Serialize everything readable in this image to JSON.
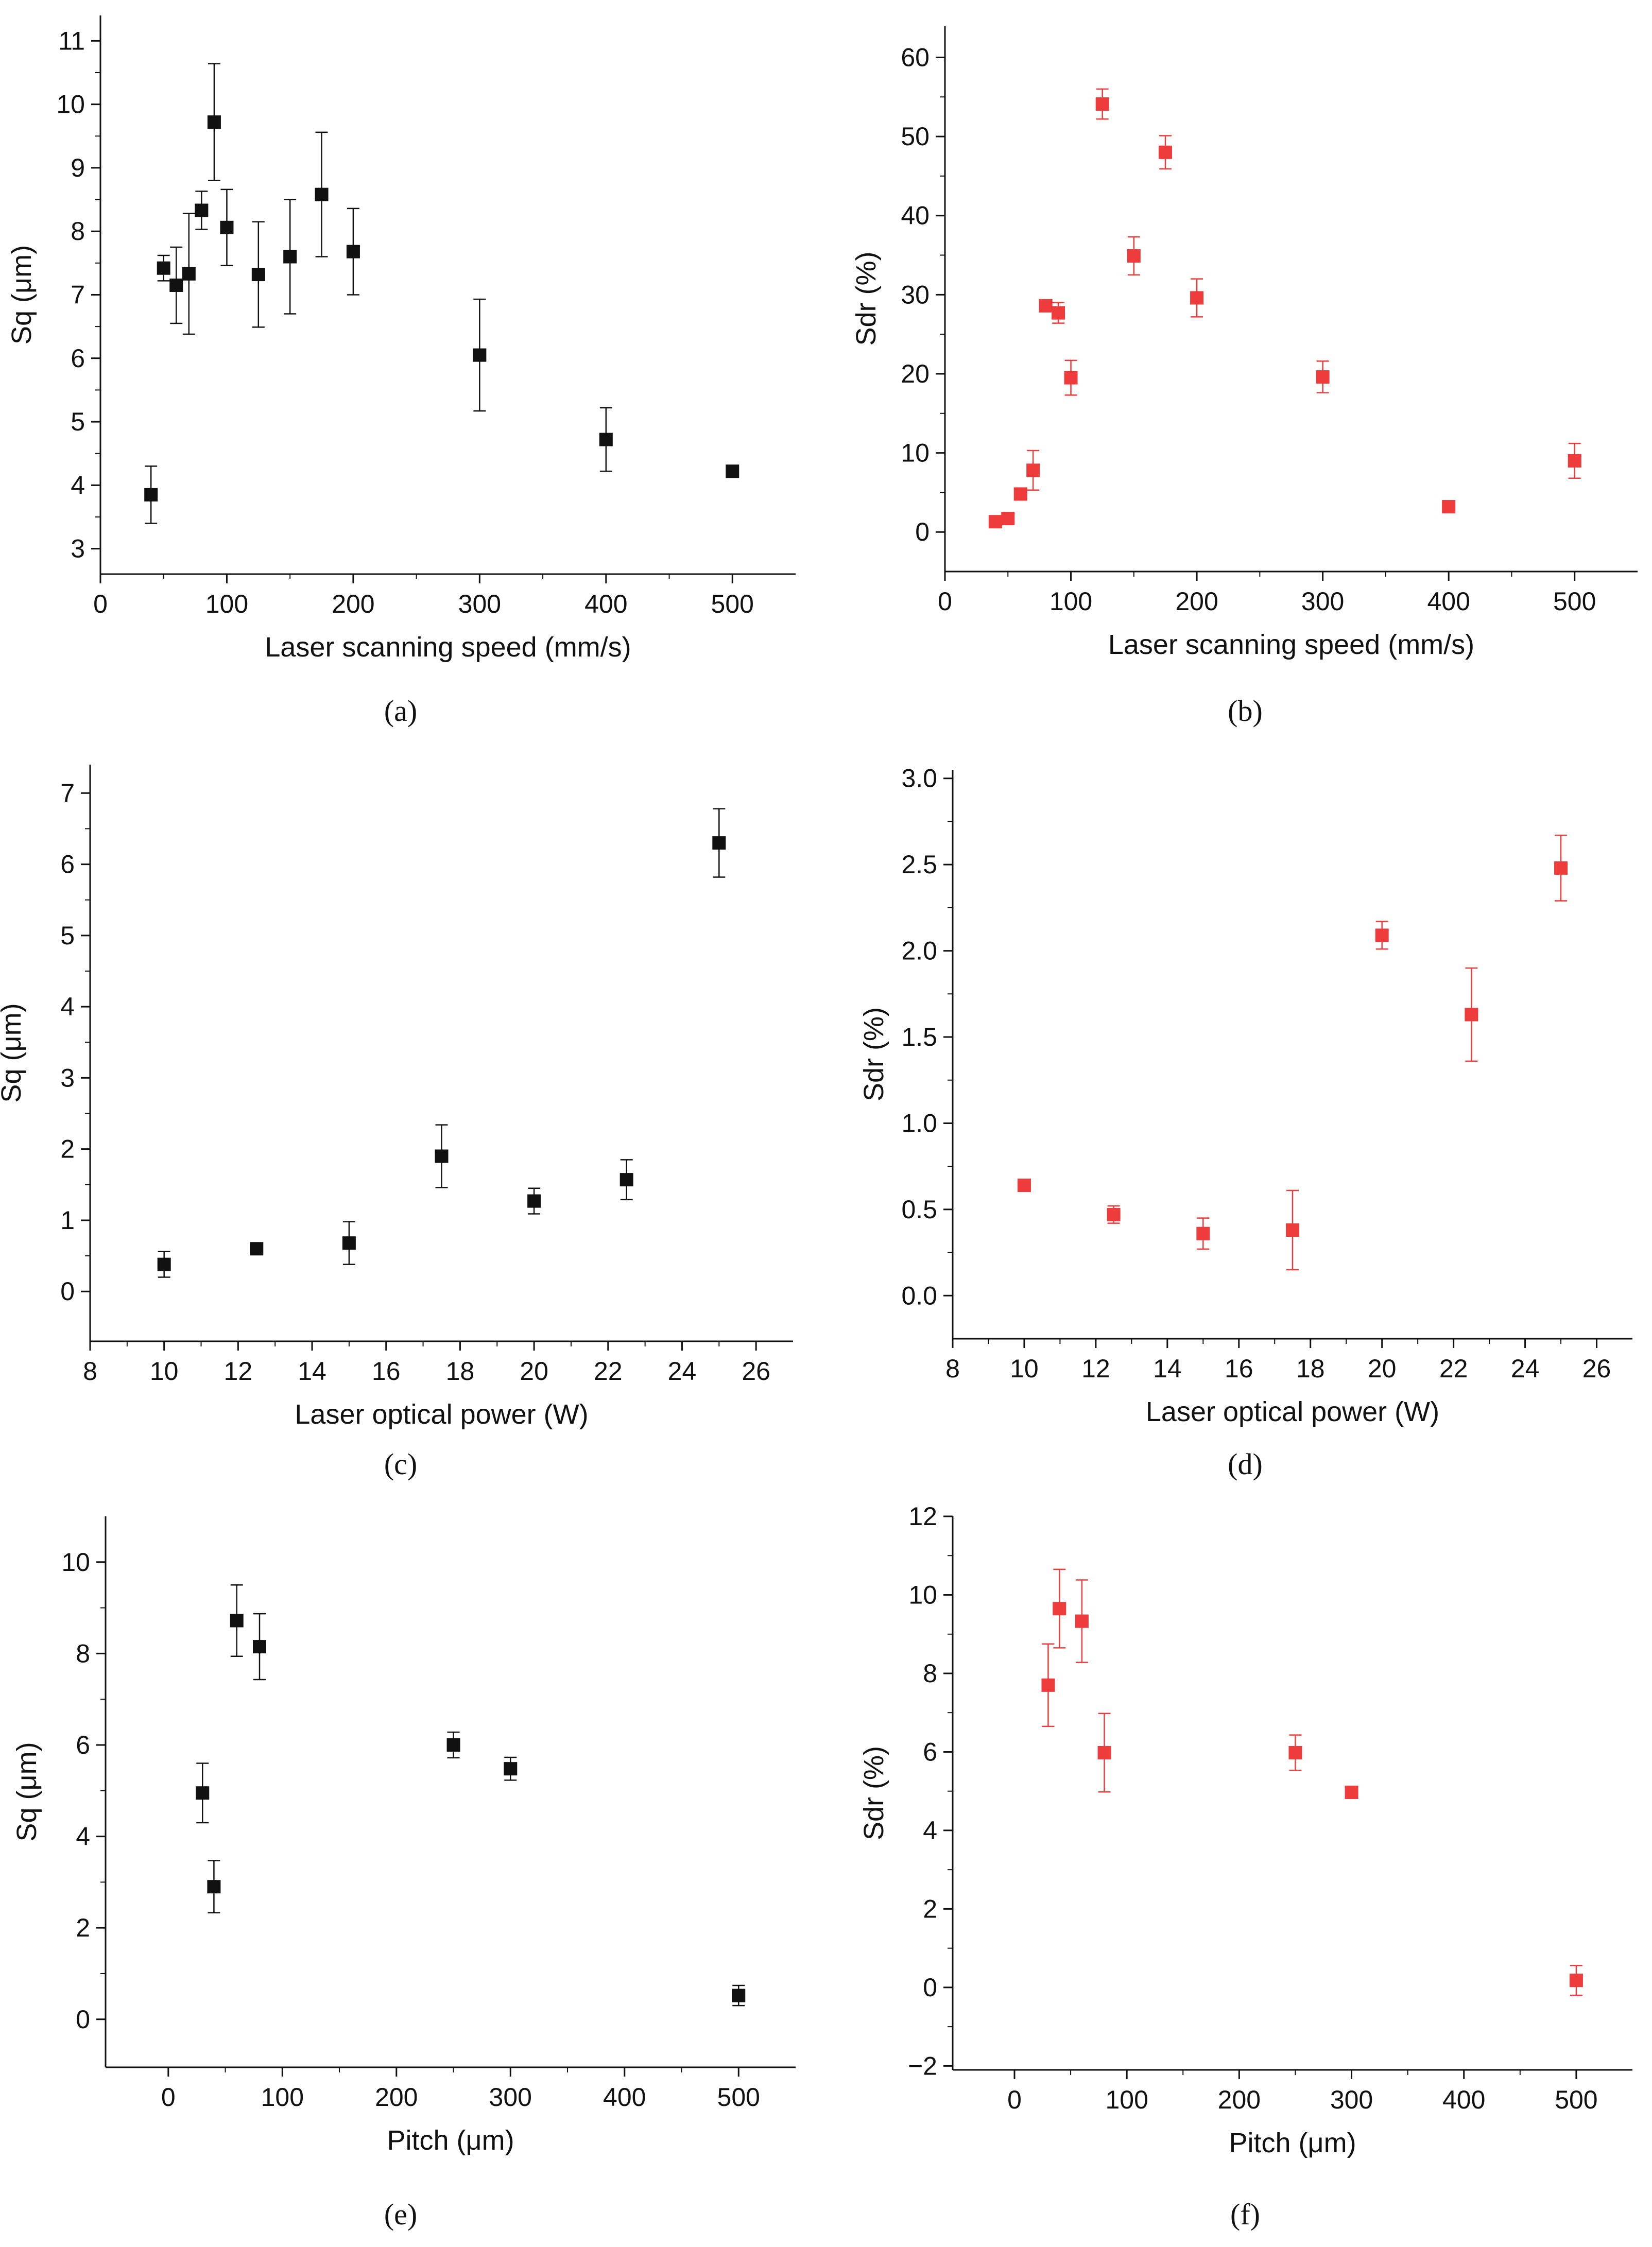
{
  "figure": {
    "panels": [
      {
        "caption": "(a)",
        "color": "#111111"
      },
      {
        "caption": "(b)",
        "color": "#ee3b3b"
      },
      {
        "caption": "(c)",
        "color": "#111111"
      },
      {
        "caption": "(d)",
        "color": "#ee3b3b"
      },
      {
        "caption": "(e)",
        "color": "#111111"
      },
      {
        "caption": "(f)",
        "color": "#ee3b3b"
      }
    ]
  },
  "chart_data": [
    {
      "type": "scatter",
      "title": "",
      "xlabel": "Laser scanning speed (mm/s)",
      "ylabel": "Sq (μm)",
      "xlim": [
        0,
        550
      ],
      "ylim": [
        2.6,
        11.4
      ],
      "xticks": [
        0,
        100,
        200,
        300,
        400,
        500
      ],
      "yticks": [
        3,
        4,
        5,
        6,
        7,
        8,
        9,
        10,
        11
      ],
      "xtick_labels": [
        "0",
        "100",
        "200",
        "300",
        "400",
        "500"
      ],
      "ytick_labels": [
        "3",
        "4",
        "5",
        "6",
        "7",
        "8",
        "9",
        "10",
        "11"
      ],
      "grid": false,
      "series": [
        {
          "name": "Sq",
          "color": "#111111",
          "x": [
            40,
            50,
            60,
            70,
            80,
            90,
            100,
            125,
            150,
            175,
            200,
            300,
            400,
            500
          ],
          "y": [
            3.85,
            7.42,
            7.15,
            7.33,
            8.33,
            9.72,
            8.06,
            7.32,
            7.6,
            8.58,
            7.68,
            6.05,
            4.72,
            4.22
          ],
          "err": [
            0.45,
            0.2,
            0.6,
            0.95,
            0.3,
            0.92,
            0.6,
            0.83,
            0.9,
            0.98,
            0.68,
            0.88,
            0.5,
            0.0
          ]
        }
      ]
    },
    {
      "type": "scatter",
      "title": "",
      "xlabel": "Laser scanning speed (mm/s)",
      "ylabel": "Sdr (%)",
      "xlim": [
        0,
        550
      ],
      "ylim": [
        -5,
        64
      ],
      "xticks": [
        0,
        100,
        200,
        300,
        400,
        500
      ],
      "yticks": [
        0,
        10,
        20,
        30,
        40,
        50,
        60
      ],
      "xtick_labels": [
        "0",
        "100",
        "200",
        "300",
        "400",
        "500"
      ],
      "ytick_labels": [
        "0",
        "10",
        "20",
        "30",
        "40",
        "50",
        "60"
      ],
      "grid": false,
      "series": [
        {
          "name": "Sdr",
          "color": "#ee3b3b",
          "x": [
            40,
            50,
            60,
            70,
            80,
            90,
            100,
            125,
            150,
            175,
            200,
            300,
            400,
            500
          ],
          "y": [
            1.3,
            1.7,
            4.8,
            7.8,
            28.6,
            27.7,
            19.5,
            54.1,
            34.9,
            48.0,
            29.6,
            19.6,
            3.2,
            9.0
          ],
          "err": [
            0.3,
            0.3,
            0.6,
            2.5,
            0.7,
            1.3,
            2.2,
            1.9,
            2.4,
            2.1,
            2.4,
            2.0,
            0.5,
            2.2
          ]
        }
      ]
    },
    {
      "type": "scatter",
      "title": "",
      "xlabel": "Laser optical power (W)",
      "ylabel": "Sq (μm)",
      "xlim": [
        8,
        27
      ],
      "ylim": [
        -0.7,
        7.4
      ],
      "xticks": [
        8,
        10,
        12,
        14,
        16,
        18,
        20,
        22,
        24,
        26
      ],
      "yticks": [
        0,
        1,
        2,
        3,
        4,
        5,
        6,
        7
      ],
      "xtick_labels": [
        "8",
        "10",
        "12",
        "14",
        "16",
        "18",
        "20",
        "22",
        "24",
        "26"
      ],
      "ytick_labels": [
        "0",
        "1",
        "2",
        "3",
        "4",
        "5",
        "6",
        "7"
      ],
      "grid": false,
      "series": [
        {
          "name": "Sq",
          "color": "#111111",
          "x": [
            10,
            12.5,
            15,
            17.5,
            20,
            22.5,
            25
          ],
          "y": [
            0.38,
            0.6,
            0.68,
            1.9,
            1.27,
            1.57,
            6.3
          ],
          "err": [
            0.18,
            0.0,
            0.3,
            0.44,
            0.18,
            0.28,
            0.48
          ]
        }
      ]
    },
    {
      "type": "scatter",
      "title": "",
      "xlabel": "Laser optical power (W)",
      "ylabel": "Sdr (%)",
      "xlim": [
        8,
        27
      ],
      "ylim": [
        -0.25,
        3.05
      ],
      "xticks": [
        8,
        10,
        12,
        14,
        16,
        18,
        20,
        22,
        24,
        26
      ],
      "yticks": [
        0.0,
        0.5,
        1.0,
        1.5,
        2.0,
        2.5,
        3.0
      ],
      "xtick_labels": [
        "8",
        "10",
        "12",
        "14",
        "16",
        "18",
        "20",
        "22",
        "24",
        "26"
      ],
      "ytick_labels": [
        "0.0",
        "0.5",
        "1.0",
        "1.5",
        "2.0",
        "2.5",
        "3.0"
      ],
      "grid": false,
      "series": [
        {
          "name": "Sdr",
          "color": "#ee3b3b",
          "x": [
            10,
            12.5,
            15,
            17.5,
            20,
            22.5,
            25
          ],
          "y": [
            0.64,
            0.47,
            0.36,
            0.38,
            2.09,
            1.63,
            2.48
          ],
          "err": [
            0.0,
            0.05,
            0.09,
            0.23,
            0.08,
            0.27,
            0.19
          ]
        }
      ]
    },
    {
      "type": "scatter",
      "title": "",
      "xlabel": "Pitch (μm)",
      "ylabel": "Sq (μm)",
      "xlim": [
        -55,
        550
      ],
      "ylim": [
        -1.05,
        11.0
      ],
      "xticks": [
        0,
        100,
        200,
        300,
        400,
        500
      ],
      "yticks": [
        0,
        2,
        4,
        6,
        8,
        10
      ],
      "xtick_labels": [
        "0",
        "100",
        "200",
        "300",
        "400",
        "500"
      ],
      "ytick_labels": [
        "0",
        "2",
        "4",
        "6",
        "8",
        "10"
      ],
      "grid": false,
      "series": [
        {
          "name": "Sq",
          "color": "#111111",
          "x": [
            30,
            40,
            60,
            80,
            250,
            300,
            500
          ],
          "y": [
            4.95,
            2.9,
            8.72,
            8.15,
            6.0,
            5.48,
            0.52
          ],
          "err": [
            0.65,
            0.57,
            0.78,
            0.72,
            0.28,
            0.25,
            0.22
          ]
        }
      ]
    },
    {
      "type": "scatter",
      "title": "",
      "xlabel": "Pitch (μm)",
      "ylabel": "Sdr (%)",
      "xlim": [
        -55,
        550
      ],
      "ylim": [
        -2.1,
        12.0
      ],
      "xticks": [
        0,
        100,
        200,
        300,
        400,
        500
      ],
      "yticks": [
        -2,
        0,
        2,
        4,
        6,
        8,
        10,
        12
      ],
      "xtick_labels": [
        "0",
        "100",
        "200",
        "300",
        "400",
        "500"
      ],
      "ytick_labels": [
        "−2",
        "0",
        "2",
        "4",
        "6",
        "8",
        "10",
        "12"
      ],
      "grid": false,
      "series": [
        {
          "name": "Sdr",
          "color": "#ee3b3b",
          "x": [
            30,
            40,
            60,
            80,
            250,
            300,
            500
          ],
          "y": [
            7.7,
            9.65,
            9.33,
            5.98,
            5.98,
            4.97,
            0.18
          ],
          "err": [
            1.05,
            1.0,
            1.05,
            1.0,
            0.45,
            0.0,
            0.38
          ]
        }
      ]
    }
  ]
}
